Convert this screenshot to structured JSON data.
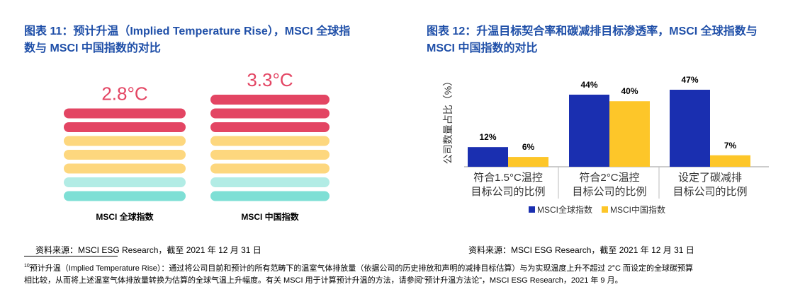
{
  "chart11": {
    "title": "图表 11：预计升温（Implied Temperature Rise），MSCI 全球指数与 MSCI 中国指数的对比",
    "title_line1": "图表 11：预计升温（Implied Temperature Rise），MSCI 全球指",
    "title_line2": "数与 MSCI 中国指数的对比",
    "source": "资料来源：MSCI ESG Research，截至 2021 年 12 月 31 日"
  },
  "chart12": {
    "title_line1": "图表 12：升温目标契合率和碳减排目标渗透率，MSCI 全球指数与",
    "title_line2": "MSCI 中国指数的对比",
    "source": "资料来源：MSCI ESG Research，截至 2021 年 12 月 31 日"
  },
  "footnote": {
    "marker": "10",
    "line1": "预计升温（Implied Temperature Rise）：通过将公司目前和预计的所有范畴下的温室气体排放量（依据公司的历史排放和声明的减排目标估算）与为实现温度上升不超过 2°C 而设定的全球碳预算",
    "line2": "相比较，从而将上述温室气体排放量转换为估算的全球气温上升幅度。有关 MSCI 用于计算预计升温的方法，请参阅“预计升温方法论”，MSCI ESG Research，2021 年 9 月。"
  },
  "chart_data": [
    {
      "type": "bar",
      "categories": [
        "MSCI 全球指数",
        "MSCI 中国指数"
      ],
      "values": [
        2.8,
        3.3
      ],
      "value_labels": [
        "2.8°C",
        "3.3°C"
      ],
      "stripes": {
        "MSCI 全球指数": [
          "#e34563",
          "#e34563",
          "#fdd77e",
          "#fdd77e",
          "#fdd77e",
          "#b2ece5",
          "#7edfd5"
        ],
        "MSCI 中国指数": [
          "#e34563",
          "#e34563",
          "#e34563",
          "#fdd77e",
          "#fdd77e",
          "#fdd77e",
          "#b2ece5",
          "#7edfd5"
        ]
      },
      "colors": {
        "label": "#e34563"
      }
    },
    {
      "type": "bar",
      "ylabel": "公司数量占比（%）",
      "categories": [
        [
          "符合1.5°C温控",
          "目标公司的比例"
        ],
        [
          "符合2°C温控",
          "目标公司的比例"
        ],
        [
          "设定了碳减排",
          "目标公司的比例"
        ]
      ],
      "series": [
        {
          "name": "MSCI全球指数",
          "values": [
            12,
            44,
            47
          ],
          "labels": [
            "12%",
            "44%",
            "47%"
          ],
          "color": "#1a2fb0"
        },
        {
          "name": "MSCI中国指数",
          "values": [
            6,
            40,
            7
          ],
          "labels": [
            "6%",
            "40%",
            "7%"
          ],
          "color": "#fdc629"
        }
      ],
      "ylim": [
        0,
        50
      ],
      "legend": "bottom"
    }
  ]
}
